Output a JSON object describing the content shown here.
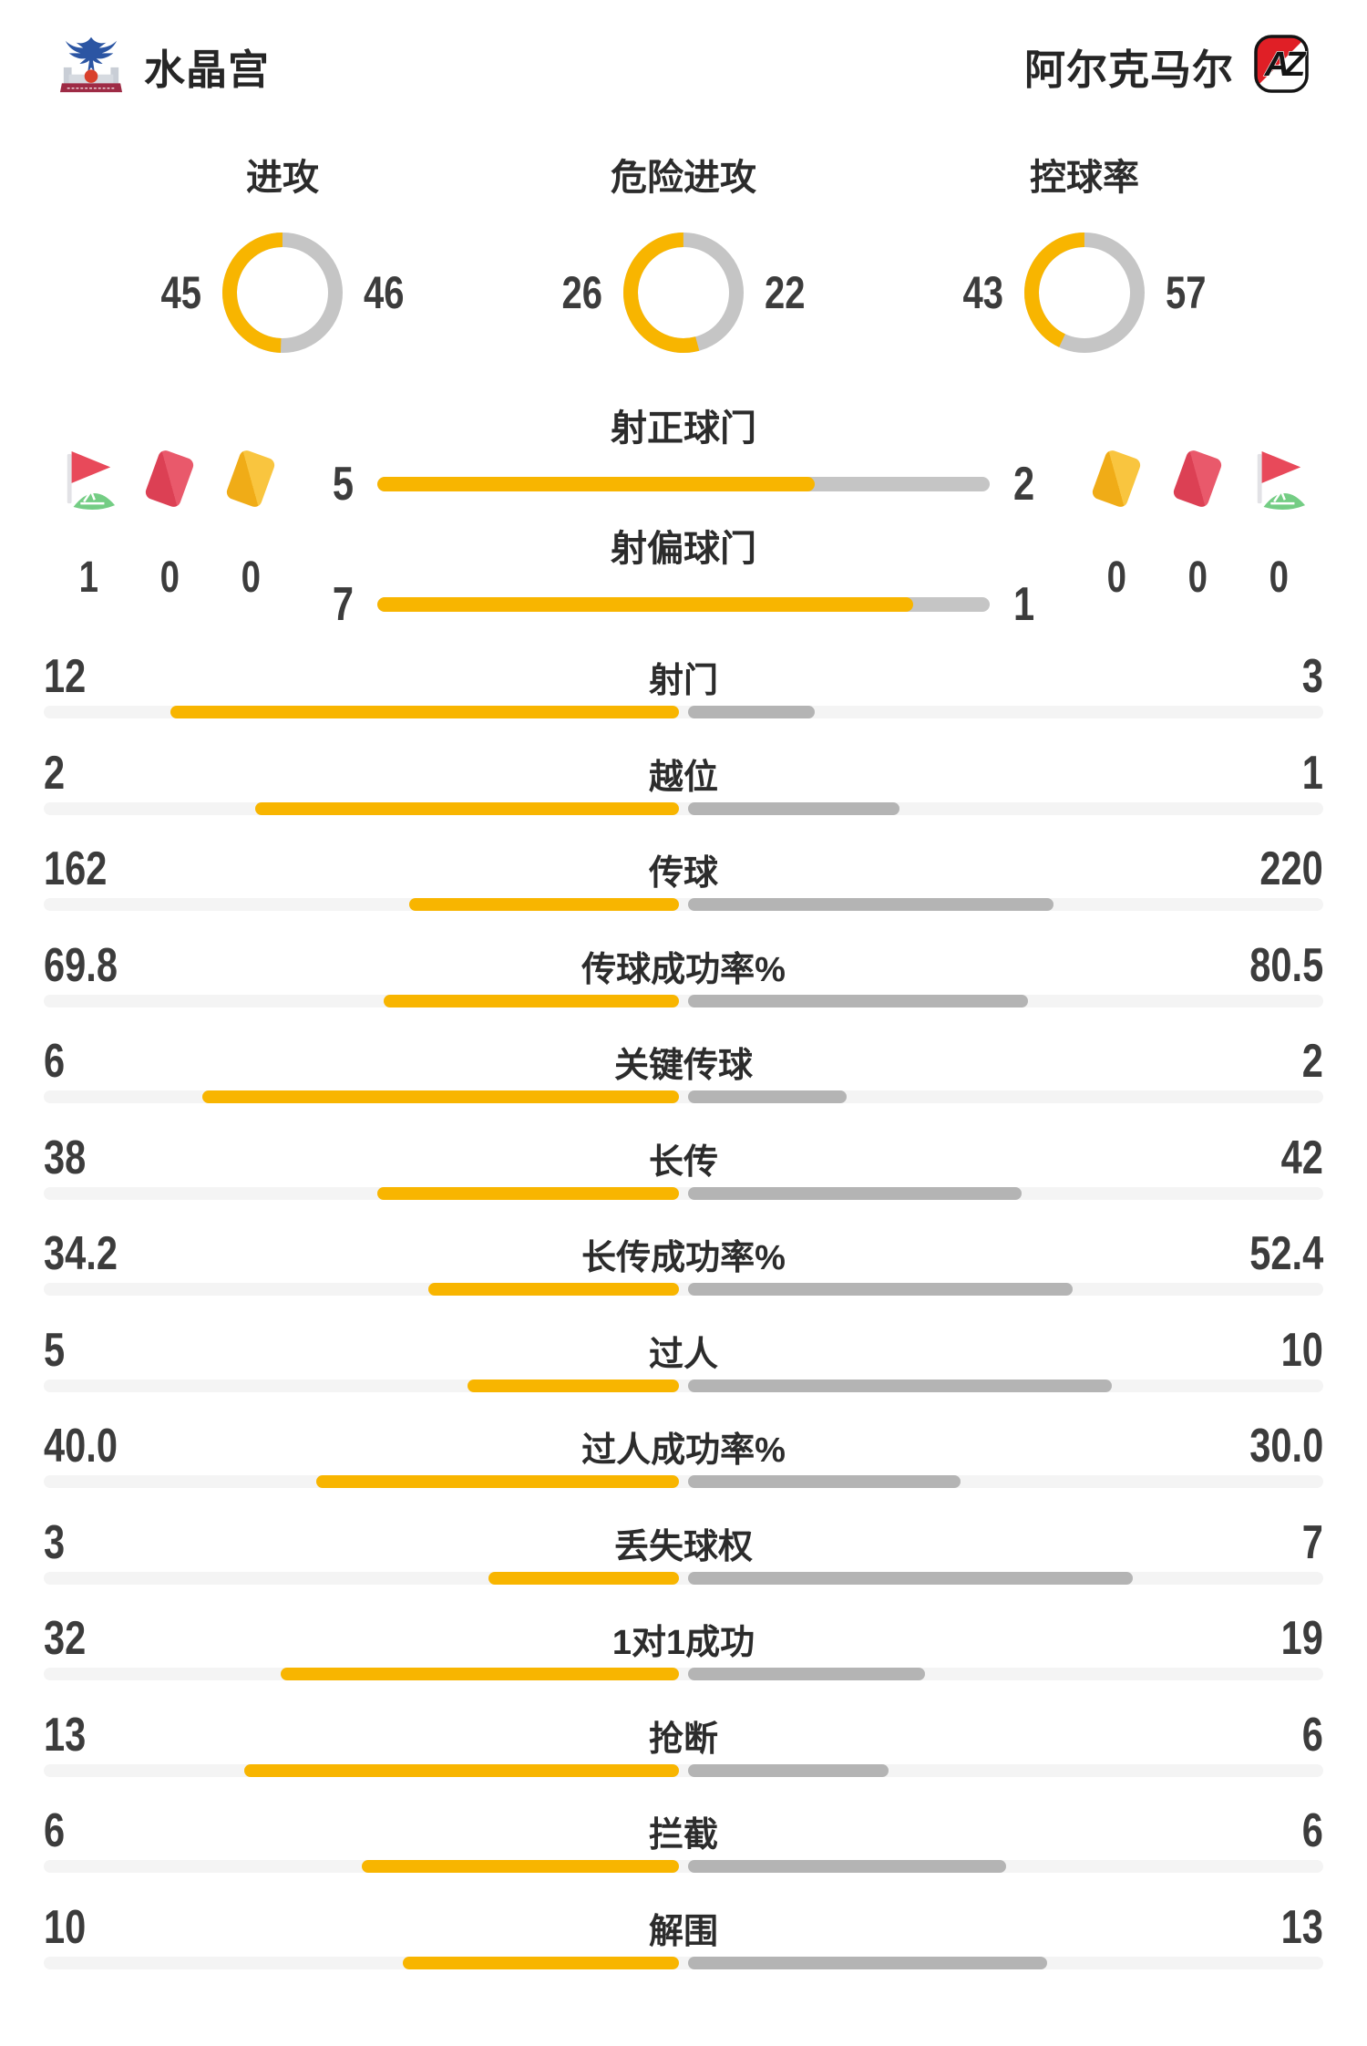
{
  "header": {
    "home_name": "水晶宫",
    "away_name": "阿尔克马尔",
    "home_logo_icon": "crystal-palace-crest",
    "away_logo_icon": "az-alkmaar-crest"
  },
  "colors": {
    "accent_yellow": "#F8B500",
    "away_gray": "#B4B4B4",
    "donut_gray": "#C5C5C5",
    "bar_track": "#F4F4F4",
    "card_red": "#E0475A",
    "card_yellow": "#F5B92D",
    "flag_green": "#74CD84"
  },
  "donuts": [
    {
      "label": "进攻",
      "home": "45",
      "away": "46"
    },
    {
      "label": "危险进攻",
      "home": "26",
      "away": "22"
    },
    {
      "label": "控球率",
      "home": "43",
      "away": "57"
    }
  ],
  "discipline": {
    "home": {
      "corner": "1",
      "red_card": "0",
      "yellow_card": "0"
    },
    "away": {
      "yellow_card": "0",
      "red_card": "0",
      "corner": "0"
    }
  },
  "shot_bars": [
    {
      "label": "射正球门",
      "home": "5",
      "away": "2"
    },
    {
      "label": "射偏球门",
      "home": "7",
      "away": "1"
    }
  ],
  "stats": [
    {
      "label": "射门",
      "home": "12",
      "away": "3"
    },
    {
      "label": "越位",
      "home": "2",
      "away": "1"
    },
    {
      "label": "传球",
      "home": "162",
      "away": "220"
    },
    {
      "label": "传球成功率%",
      "home": "69.8",
      "away": "80.5"
    },
    {
      "label": "关键传球",
      "home": "6",
      "away": "2"
    },
    {
      "label": "长传",
      "home": "38",
      "away": "42"
    },
    {
      "label": "长传成功率%",
      "home": "34.2",
      "away": "52.4"
    },
    {
      "label": "过人",
      "home": "5",
      "away": "10"
    },
    {
      "label": "过人成功率%",
      "home": "40.0",
      "away": "30.0"
    },
    {
      "label": "丢失球权",
      "home": "3",
      "away": "7"
    },
    {
      "label": "1对1成功",
      "home": "32",
      "away": "19"
    },
    {
      "label": "抢断",
      "home": "13",
      "away": "6"
    },
    {
      "label": "拦截",
      "home": "6",
      "away": "6"
    },
    {
      "label": "解围",
      "home": "10",
      "away": "13"
    }
  ]
}
